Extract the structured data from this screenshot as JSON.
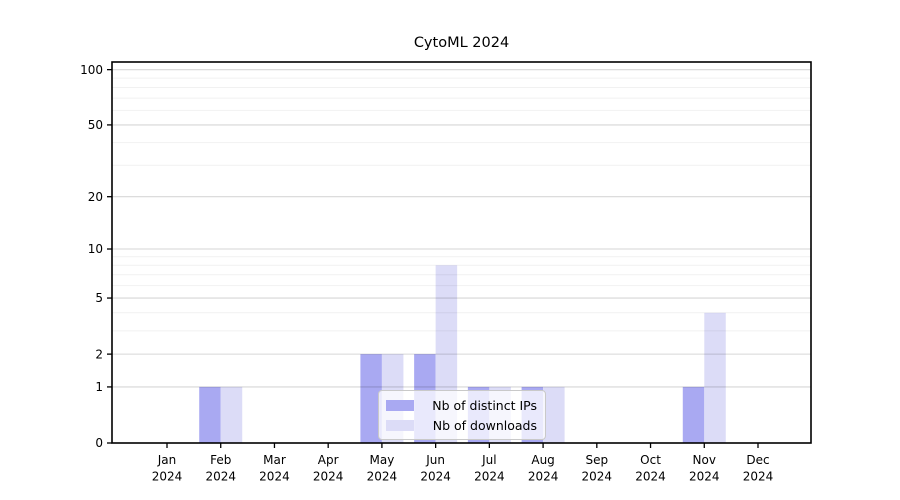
{
  "title": "CytoML 2024",
  "legend": {
    "items": [
      {
        "label": "Nb of distinct IPs",
        "key": "distinct_ips"
      },
      {
        "label": "Nb of downloads",
        "key": "downloads"
      }
    ]
  },
  "colors": {
    "distinct_ips": "#a9a9f2",
    "downloads": "#dcdcf7",
    "axis": "#000000",
    "grid_major": "rgba(0,0,0,0.16)",
    "grid_minor": "rgba(0,0,0,0.055)",
    "legend_border": "#c9c9c9",
    "legend_background": "rgba(255,255,255,0.75)"
  },
  "chart_data": {
    "type": "bar",
    "title": "CytoML 2024",
    "categories": [
      "Jan 2024",
      "Feb 2024",
      "Mar 2024",
      "Apr 2024",
      "May 2024",
      "Jun 2024",
      "Jul 2024",
      "Aug 2024",
      "Sep 2024",
      "Oct 2024",
      "Nov 2024",
      "Dec 2024"
    ],
    "series": [
      {
        "name": "Nb of distinct IPs",
        "values": [
          0,
          1,
          0,
          0,
          2,
          2,
          1,
          1,
          0,
          0,
          1,
          0
        ]
      },
      {
        "name": "Nb of downloads",
        "values": [
          0,
          1,
          0,
          0,
          2,
          8,
          1,
          1,
          0,
          0,
          4,
          0
        ]
      }
    ],
    "yscale": "log1p",
    "y_ticks": [
      0,
      1,
      2,
      5,
      10,
      20,
      50,
      100
    ],
    "y_minor_gridlines": [
      3,
      4,
      6,
      7,
      8,
      9,
      30,
      40,
      60,
      70,
      80,
      90
    ],
    "ylim": [
      0,
      110
    ],
    "xlabel": "",
    "ylabel": "",
    "grid": true,
    "legend_position": "inside-bottom-center"
  }
}
